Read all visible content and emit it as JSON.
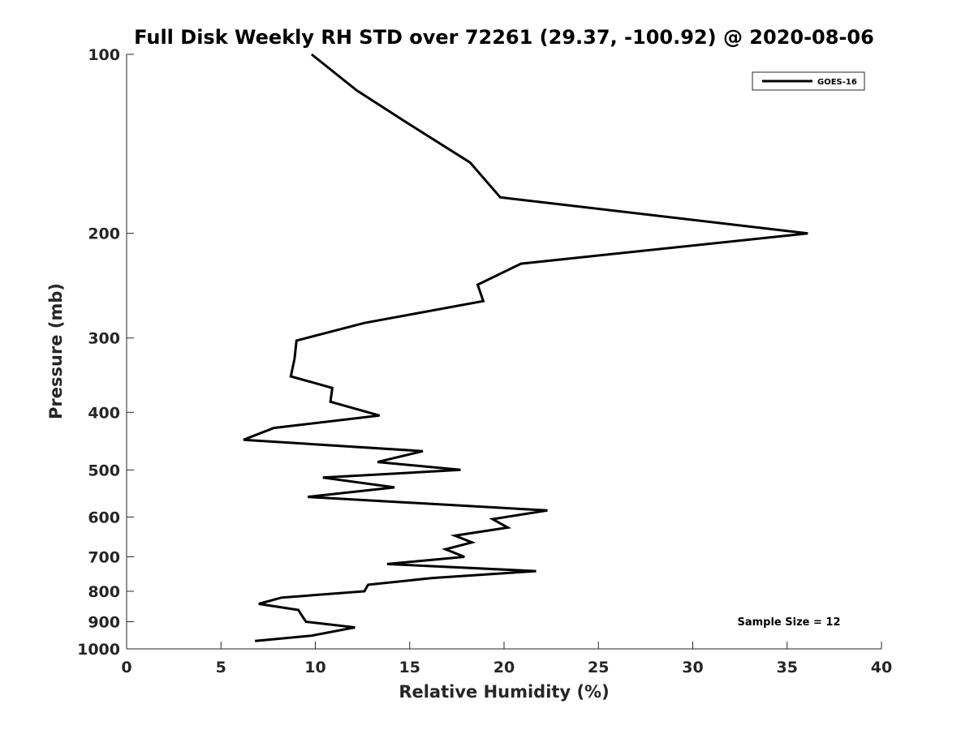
{
  "chart_data": {
    "type": "line",
    "title": "Full Disk Weekly RH STD over 72261 (29.37, -100.92) @ 2020-08-06",
    "xlabel": "Relative Humidity (%)",
    "ylabel": "Pressure (mb)",
    "xlim": [
      0,
      40
    ],
    "ylim": [
      100,
      1000
    ],
    "yscale": "log",
    "y_reversed": true,
    "xticks": [
      0,
      5,
      10,
      15,
      20,
      25,
      30,
      35,
      40
    ],
    "yticks": [
      100,
      200,
      300,
      400,
      500,
      600,
      700,
      800,
      900,
      1000
    ],
    "legend": {
      "entries": [
        "GOES-16"
      ],
      "location": "top-right"
    },
    "annotation": "Sample Size = 12",
    "series": [
      {
        "name": "GOES-16",
        "color": "#000000",
        "x": [
          9.8,
          12.2,
          14.8,
          18.2,
          19.8,
          36.1,
          20.9,
          18.6,
          18.9,
          12.6,
          9.0,
          8.9,
          8.7,
          10.9,
          10.8,
          13.4,
          7.8,
          6.2,
          15.7,
          13.3,
          17.7,
          10.4,
          14.2,
          9.6,
          22.3,
          19.4,
          20.2,
          17.4,
          18.3,
          16.9,
          17.9,
          13.8,
          21.7,
          16.2,
          12.8,
          12.6,
          8.2,
          7.0,
          9.1,
          9.3,
          9.5,
          12.1,
          9.8,
          6.8
        ],
        "y": [
          100,
          115,
          130,
          152,
          174,
          200,
          225,
          244,
          260,
          283,
          303,
          325,
          348,
          364,
          384,
          405,
          425,
          445,
          465,
          485,
          500,
          515,
          535,
          555,
          585,
          605,
          625,
          645,
          662,
          680,
          700,
          720,
          740,
          760,
          780,
          800,
          820,
          840,
          860,
          880,
          900,
          920,
          950,
          970
        ]
      }
    ]
  }
}
